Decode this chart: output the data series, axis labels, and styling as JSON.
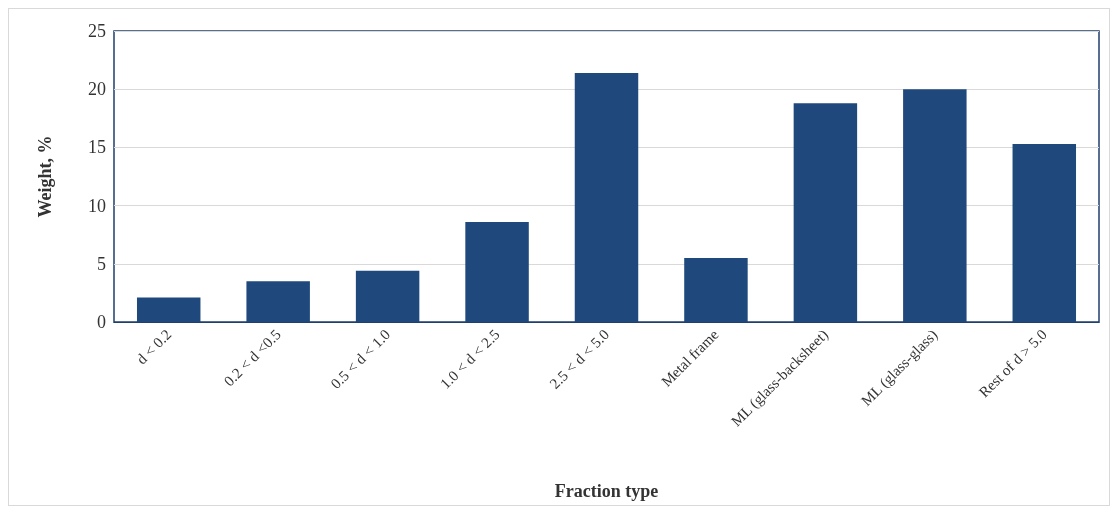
{
  "chart_data": {
    "type": "bar",
    "xlabel": "Fraction type",
    "ylabel": "Weight, %",
    "categories": [
      "d < 0.2",
      "0.2 < d <0.5",
      "0.5 < d < 1.0",
      "1.0 < d < 2.5",
      "2.5 < d < 5.0",
      "Metal frame",
      "ML (glass-backsheet)",
      "ML (glass-glass)",
      "Rest of d > 5.0"
    ],
    "values": [
      2.1,
      3.5,
      4.4,
      8.6,
      21.4,
      5.5,
      18.8,
      20.0,
      15.3
    ],
    "color": "#1f497d",
    "ylim": [
      0,
      25
    ],
    "yticks": [
      0,
      5,
      10,
      15,
      20,
      25
    ],
    "grid": "y"
  }
}
